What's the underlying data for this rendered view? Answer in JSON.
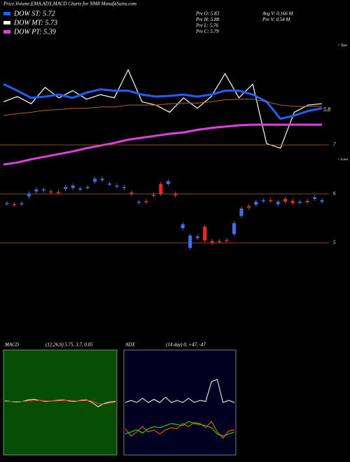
{
  "header": {
    "title": "Price,Volume,EMA,ADX,MACD Charts for NMR MunafaSutra.com",
    "legend": [
      "DOW ST: 5.72",
      "DOW MT: 5.73",
      "DOW PT: 5.39"
    ],
    "info": [
      "Pre O: 5.83",
      "Pre H: 5.88",
      "Pre L: 5.76",
      "Pre C: 5.79",
      "Avg V: 0.166 M",
      "Pre V: 0.54 M"
    ]
  },
  "chart_data": [
    {
      "type": "line",
      "ylim": [
        5,
        6.5
      ],
      "end_label": "5.8",
      "top_label": "< Tops",
      "low_label": "< Lows",
      "series": [
        {
          "name": "price",
          "color": "#ffffff",
          "width": 1.2,
          "values": [
            5.96,
            6.04,
            5.93,
            6.18,
            6.02,
            6.13,
            6.0,
            6.07,
            6.02,
            6.45,
            5.96,
            5.91,
            5.8,
            6.02,
            5.86,
            6.04,
            6.39,
            6.02,
            6.23,
            5.32,
            5.25,
            5.8,
            5.91,
            5.93
          ]
        },
        {
          "name": "ema-short",
          "color": "#1f5fff",
          "width": 3,
          "values": [
            6.23,
            6.13,
            6.02,
            6.04,
            6.07,
            6.02,
            6.1,
            6.15,
            6.13,
            6.13,
            6.07,
            6.04,
            6.05,
            6.07,
            6.04,
            6.07,
            6.13,
            6.13,
            6.07,
            5.96,
            5.7,
            5.75,
            5.82,
            5.86
          ]
        },
        {
          "name": "ema-mid",
          "color": "#b5651d",
          "width": 1,
          "values": [
            5.75,
            5.78,
            5.8,
            5.83,
            5.84,
            5.86,
            5.86,
            5.88,
            5.88,
            5.91,
            5.91,
            5.91,
            5.93,
            5.94,
            5.94,
            5.96,
            5.99,
            6.0,
            6.0,
            5.96,
            5.91,
            5.89,
            5.89,
            5.89
          ]
        },
        {
          "name": "ema-long",
          "color": "#e040e0",
          "width": 3,
          "values": [
            5.0,
            5.03,
            5.08,
            5.12,
            5.16,
            5.2,
            5.25,
            5.29,
            5.33,
            5.38,
            5.41,
            5.44,
            5.47,
            5.49,
            5.53,
            5.56,
            5.58,
            5.6,
            5.61,
            5.61,
            5.61,
            5.61,
            5.61,
            5.61
          ]
        }
      ]
    },
    {
      "type": "candlestick",
      "ylim": [
        4.6,
        7.1
      ],
      "yticks": [
        5,
        6,
        7
      ],
      "up_color": "#3a6fff",
      "down_color": "#ff2020",
      "open": [
        5.8,
        5.79,
        5.8,
        5.95,
        6.05,
        6.07,
        6.05,
        6.04,
        6.1,
        6.12,
        6.1,
        6.13,
        6.25,
        6.28,
        6.2,
        6.15,
        6.12,
        6.03,
        5.82,
        5.85,
        5.98,
        6.2,
        6.2,
        6.0,
        5.3,
        4.9,
        5.1,
        5.33,
        5.04,
        5.04,
        5.06,
        5.18,
        5.55,
        5.75,
        5.78,
        5.86,
        5.87,
        5.79,
        5.9,
        5.86,
        5.82,
        5.86,
        5.9,
        5.84
      ],
      "close": [
        5.81,
        5.78,
        5.81,
        6.0,
        6.09,
        6.09,
        6.03,
        6.03,
        6.14,
        6.17,
        6.11,
        6.14,
        6.31,
        6.31,
        6.21,
        6.17,
        6.14,
        6.0,
        5.84,
        5.84,
        5.97,
        6.0,
        6.26,
        5.97,
        5.38,
        5.15,
        5.13,
        5.05,
        5.0,
        5.03,
        5.05,
        5.4,
        5.7,
        5.72,
        5.84,
        5.87,
        5.86,
        5.84,
        5.84,
        5.81,
        5.84,
        5.83,
        5.93,
        5.87
      ]
    },
    {
      "type": "macd",
      "title": "MACD",
      "params": "(12,26,9) 5.75, 3.7, 0.05",
      "ylim": [
        -1,
        1
      ],
      "background": "#064d06",
      "series": [
        {
          "name": "macd",
          "color": "#ffffff",
          "values": [
            0.03,
            0.02,
            0.01,
            0.02,
            0.05,
            0.06,
            0.04,
            0.02,
            0.03,
            0.04,
            0.05,
            0.03,
            0.02,
            0.04,
            0.05,
            0.0,
            -0.08,
            -0.02,
            0.01,
            0.02
          ]
        },
        {
          "name": "signal",
          "color": "#ff3030",
          "values": [
            0.02,
            0.02,
            0.02,
            0.02,
            0.03,
            0.04,
            0.04,
            0.03,
            0.03,
            0.03,
            0.04,
            0.04,
            0.03,
            0.03,
            0.04,
            0.03,
            -0.02,
            -0.03,
            -0.01,
            0.0
          ]
        }
      ]
    },
    {
      "type": "adx",
      "title": "ADX",
      "params": "(14 day) 0, +47, -47",
      "ylim": [
        0,
        100
      ],
      "background": "#000020",
      "series": [
        {
          "name": "adx",
          "color": "#ffffff",
          "values": [
            50,
            52,
            50,
            54,
            50,
            53,
            50,
            55,
            50,
            52,
            50,
            54,
            50,
            52,
            51,
            70,
            72,
            50,
            52,
            50
          ]
        },
        {
          "name": "plus-di",
          "color": "#00ff00",
          "values": [
            20,
            22,
            24,
            21,
            25,
            27,
            26,
            28,
            30,
            29,
            28,
            32,
            30,
            29,
            28,
            26,
            20,
            18,
            20,
            22
          ]
        },
        {
          "name": "minus-di",
          "color": "#ff6a00",
          "values": [
            25,
            18,
            22,
            27,
            22,
            24,
            20,
            24,
            26,
            25,
            30,
            27,
            31,
            30,
            26,
            32,
            22,
            16,
            23,
            24
          ]
        }
      ]
    }
  ]
}
